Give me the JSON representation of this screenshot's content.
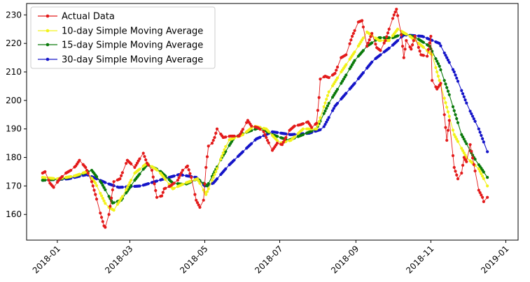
{
  "chart_data": {
    "type": "line",
    "title": "",
    "xlabel": "",
    "ylabel": "",
    "xlim": [
      "2017-12-07",
      "2019-01-11"
    ],
    "ylim": [
      151,
      234
    ],
    "x_ticks": [
      "2018-01",
      "2018-03",
      "2018-05",
      "2018-07",
      "2018-09",
      "2018-11",
      "2019-01"
    ],
    "y_ticks": [
      160,
      170,
      180,
      190,
      200,
      210,
      220,
      230
    ],
    "grid": false,
    "legend_position": "upper left",
    "x_start": "2017-12-20",
    "x_end": "2018-12-17",
    "series": [
      {
        "name": "Actual Data",
        "color": "#e31a1a",
        "anchors": [
          [
            "2017-12-20",
            174.5
          ],
          [
            "2017-12-22",
            175
          ],
          [
            "2017-12-26",
            171
          ],
          [
            "2017-12-29",
            169.5
          ],
          [
            "2018-01-03",
            172.5
          ],
          [
            "2018-01-08",
            174.5
          ],
          [
            "2018-01-12",
            175.5
          ],
          [
            "2018-01-16",
            177
          ],
          [
            "2018-01-19",
            179
          ],
          [
            "2018-01-24",
            176.5
          ],
          [
            "2018-01-29",
            171.5
          ],
          [
            "2018-02-01",
            167
          ],
          [
            "2018-02-05",
            160.5
          ],
          [
            "2018-02-08",
            156
          ],
          [
            "2018-02-09",
            155.5
          ],
          [
            "2018-02-12",
            160
          ],
          [
            "2018-02-16",
            171.5
          ],
          [
            "2018-02-21",
            172.5
          ],
          [
            "2018-02-27",
            179
          ],
          [
            "2018-03-05",
            176.5
          ],
          [
            "2018-03-09",
            179.5
          ],
          [
            "2018-03-12",
            181.5
          ],
          [
            "2018-03-15",
            178
          ],
          [
            "2018-03-19",
            175.5
          ],
          [
            "2018-03-23",
            166
          ],
          [
            "2018-03-27",
            166.5
          ],
          [
            "2018-03-29",
            169
          ],
          [
            "2018-04-03",
            170
          ],
          [
            "2018-04-09",
            172
          ],
          [
            "2018-04-13",
            175.5
          ],
          [
            "2018-04-17",
            177
          ],
          [
            "2018-04-20",
            173
          ],
          [
            "2018-04-24",
            165
          ],
          [
            "2018-04-27",
            162.5
          ],
          [
            "2018-04-30",
            165
          ],
          [
            "2018-05-02",
            176.5
          ],
          [
            "2018-05-04",
            184
          ],
          [
            "2018-05-07",
            185
          ],
          [
            "2018-05-09",
            187
          ],
          [
            "2018-05-11",
            190
          ],
          [
            "2018-05-16",
            187
          ],
          [
            "2018-05-22",
            187.5
          ],
          [
            "2018-05-29",
            187.5
          ],
          [
            "2018-06-05",
            193
          ],
          [
            "2018-06-08",
            191
          ],
          [
            "2018-06-13",
            190.5
          ],
          [
            "2018-06-18",
            189
          ],
          [
            "2018-06-21",
            186
          ],
          [
            "2018-06-25",
            182.5
          ],
          [
            "2018-06-29",
            185
          ],
          [
            "2018-07-03",
            184.5
          ],
          [
            "2018-07-09",
            189.5
          ],
          [
            "2018-07-13",
            191
          ],
          [
            "2018-07-18",
            191.5
          ],
          [
            "2018-07-24",
            192.5
          ],
          [
            "2018-07-27",
            190.5
          ],
          [
            "2018-07-31",
            192
          ],
          [
            "2018-08-02",
            201
          ],
          [
            "2018-08-03",
            207.5
          ],
          [
            "2018-08-07",
            208.5
          ],
          [
            "2018-08-10",
            208
          ],
          [
            "2018-08-15",
            209.5
          ],
          [
            "2018-08-20",
            215
          ],
          [
            "2018-08-24",
            216
          ],
          [
            "2018-08-29",
            222.5
          ],
          [
            "2018-09-03",
            227.5
          ],
          [
            "2018-09-06",
            228
          ],
          [
            "2018-09-10",
            219
          ],
          [
            "2018-09-14",
            223.5
          ],
          [
            "2018-09-18",
            218.5
          ],
          [
            "2018-09-21",
            217.5
          ],
          [
            "2018-09-25",
            221
          ],
          [
            "2018-09-28",
            225
          ],
          [
            "2018-10-02",
            230
          ],
          [
            "2018-10-04",
            232
          ],
          [
            "2018-10-08",
            223
          ],
          [
            "2018-10-10",
            215
          ],
          [
            "2018-10-12",
            221
          ],
          [
            "2018-10-16",
            218
          ],
          [
            "2018-10-19",
            222.5
          ],
          [
            "2018-10-24",
            216
          ],
          [
            "2018-10-29",
            215.5
          ],
          [
            "2018-11-01",
            222.5
          ],
          [
            "2018-11-02",
            207
          ],
          [
            "2018-11-06",
            204
          ],
          [
            "2018-11-09",
            206
          ],
          [
            "2018-11-12",
            195
          ],
          [
            "2018-11-14",
            186
          ],
          [
            "2018-11-16",
            193
          ],
          [
            "2018-11-20",
            176.5
          ],
          [
            "2018-11-23",
            172.5
          ],
          [
            "2018-11-26",
            174.5
          ],
          [
            "2018-11-28",
            180
          ],
          [
            "2018-11-30",
            178.5
          ],
          [
            "2018-12-03",
            184.5
          ],
          [
            "2018-12-06",
            177.5
          ],
          [
            "2018-12-10",
            168.5
          ],
          [
            "2018-12-13",
            166
          ],
          [
            "2018-12-14",
            164.5
          ],
          [
            "2018-12-17",
            166
          ]
        ]
      },
      {
        "name": "10-day Simple Moving Average",
        "color": "#f2f21a",
        "anchors": [
          [
            "2017-12-20",
            173
          ],
          [
            "2018-01-01",
            172.5
          ],
          [
            "2018-01-15",
            173.5
          ],
          [
            "2018-01-25",
            175
          ],
          [
            "2018-02-01",
            171
          ],
          [
            "2018-02-10",
            163
          ],
          [
            "2018-02-16",
            161.5
          ],
          [
            "2018-02-24",
            167
          ],
          [
            "2018-03-05",
            174.5
          ],
          [
            "2018-03-15",
            178
          ],
          [
            "2018-03-25",
            175
          ],
          [
            "2018-04-05",
            169
          ],
          [
            "2018-04-15",
            171
          ],
          [
            "2018-04-25",
            172.5
          ],
          [
            "2018-05-02",
            167
          ],
          [
            "2018-05-10",
            175
          ],
          [
            "2018-05-20",
            186
          ],
          [
            "2018-06-01",
            188
          ],
          [
            "2018-06-10",
            191
          ],
          [
            "2018-06-20",
            190
          ],
          [
            "2018-07-01",
            185
          ],
          [
            "2018-07-10",
            186
          ],
          [
            "2018-07-20",
            190
          ],
          [
            "2018-07-31",
            190
          ],
          [
            "2018-08-10",
            203
          ],
          [
            "2018-08-20",
            210
          ],
          [
            "2018-08-31",
            217
          ],
          [
            "2018-09-10",
            224
          ],
          [
            "2018-09-20",
            221
          ],
          [
            "2018-09-28",
            221
          ],
          [
            "2018-10-05",
            225
          ],
          [
            "2018-10-15",
            222.5
          ],
          [
            "2018-10-25",
            219
          ],
          [
            "2018-11-02",
            216
          ],
          [
            "2018-11-10",
            204
          ],
          [
            "2018-11-20",
            188
          ],
          [
            "2018-11-30",
            180
          ],
          [
            "2018-12-10",
            176
          ],
          [
            "2018-12-17",
            170
          ]
        ]
      },
      {
        "name": "15-day Simple Moving Average",
        "color": "#0a7a0a",
        "anchors": [
          [
            "2017-12-20",
            172
          ],
          [
            "2018-01-05",
            172.5
          ],
          [
            "2018-01-20",
            174
          ],
          [
            "2018-01-29",
            175.5
          ],
          [
            "2018-02-06",
            171
          ],
          [
            "2018-02-15",
            164
          ],
          [
            "2018-02-22",
            165
          ],
          [
            "2018-03-05",
            172
          ],
          [
            "2018-03-15",
            177.5
          ],
          [
            "2018-03-25",
            175.5
          ],
          [
            "2018-04-05",
            171
          ],
          [
            "2018-04-15",
            170.5
          ],
          [
            "2018-04-25",
            172.5
          ],
          [
            "2018-05-03",
            170
          ],
          [
            "2018-05-15",
            180
          ],
          [
            "2018-05-25",
            187
          ],
          [
            "2018-06-05",
            189
          ],
          [
            "2018-06-15",
            190.5
          ],
          [
            "2018-06-25",
            188
          ],
          [
            "2018-07-08",
            186
          ],
          [
            "2018-07-20",
            188
          ],
          [
            "2018-07-31",
            190
          ],
          [
            "2018-08-10",
            199
          ],
          [
            "2018-08-20",
            206
          ],
          [
            "2018-08-31",
            214
          ],
          [
            "2018-09-10",
            219
          ],
          [
            "2018-09-20",
            222
          ],
          [
            "2018-10-01",
            222
          ],
          [
            "2018-10-10",
            223.5
          ],
          [
            "2018-10-20",
            222
          ],
          [
            "2018-10-31",
            219
          ],
          [
            "2018-11-08",
            212
          ],
          [
            "2018-11-16",
            202
          ],
          [
            "2018-11-26",
            188
          ],
          [
            "2018-12-06",
            180
          ],
          [
            "2018-12-17",
            173
          ]
        ]
      },
      {
        "name": "30-day Simple Moving Average",
        "color": "#1414c8",
        "anchors": [
          [
            "2017-12-20",
            172
          ],
          [
            "2018-01-10",
            172.5
          ],
          [
            "2018-01-25",
            174
          ],
          [
            "2018-02-10",
            171
          ],
          [
            "2018-02-20",
            169.5
          ],
          [
            "2018-03-10",
            170
          ],
          [
            "2018-03-25",
            172
          ],
          [
            "2018-04-10",
            174
          ],
          [
            "2018-04-24",
            173
          ],
          [
            "2018-05-01",
            170
          ],
          [
            "2018-05-08",
            171
          ],
          [
            "2018-05-20",
            177
          ],
          [
            "2018-06-01",
            182
          ],
          [
            "2018-06-12",
            186.5
          ],
          [
            "2018-06-25",
            189
          ],
          [
            "2018-07-10",
            188
          ],
          [
            "2018-07-25",
            188.5
          ],
          [
            "2018-08-05",
            190
          ],
          [
            "2018-08-15",
            198
          ],
          [
            "2018-08-31",
            206
          ],
          [
            "2018-09-15",
            214
          ],
          [
            "2018-09-30",
            219
          ],
          [
            "2018-10-10",
            223
          ],
          [
            "2018-10-25",
            222.5
          ],
          [
            "2018-11-08",
            220
          ],
          [
            "2018-11-20",
            210
          ],
          [
            "2018-12-01",
            198
          ],
          [
            "2018-12-10",
            190
          ],
          [
            "2018-12-17",
            182
          ]
        ]
      }
    ]
  }
}
